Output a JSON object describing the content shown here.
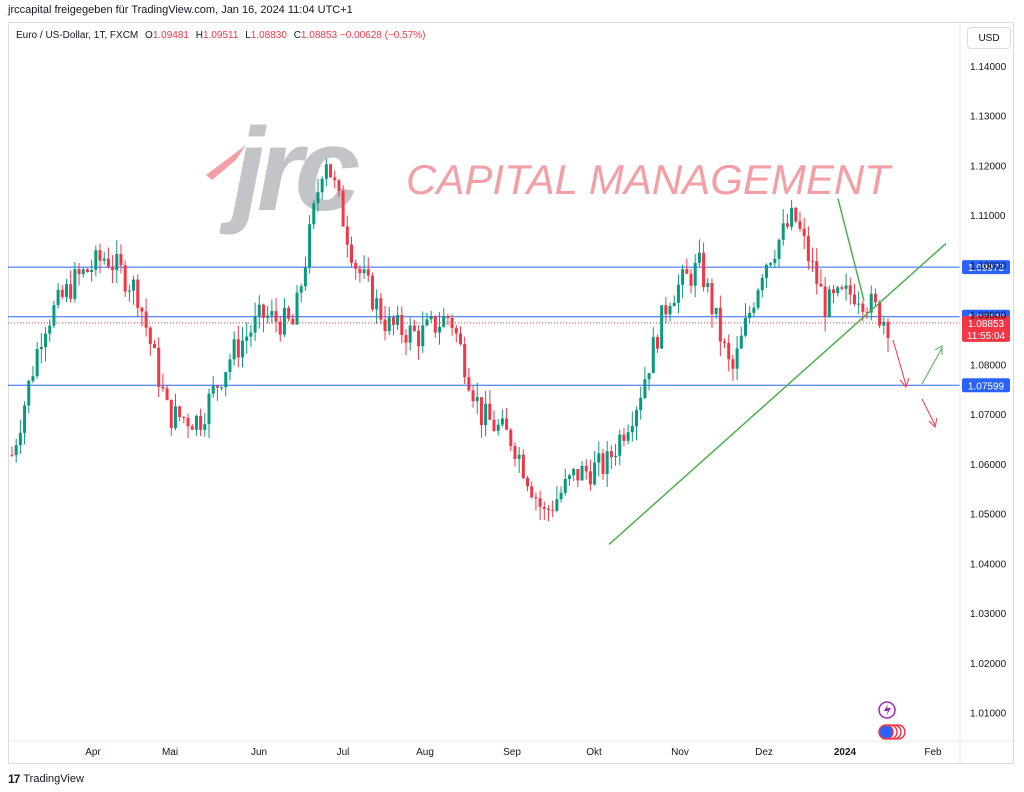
{
  "header": {
    "text": "jrccapital freigegeben für TradingView.com, Jan 16, 2024 11:04 UTC+1"
  },
  "legend": {
    "symbol": "Euro / US-Dollar, 1T, FXCM",
    "o_label": "O",
    "o": "1.09481",
    "h_label": "H",
    "h": "1.09511",
    "l_label": "L",
    "l": "1.08830",
    "c_label": "C",
    "c": "1.08853",
    "change": "−0.00628 (−0.57%)"
  },
  "currency": "USD",
  "watermark": {
    "logo": "jrc",
    "text": "CAPITAL MANAGEMENT"
  },
  "footer": {
    "brand": "TradingView"
  },
  "colors": {
    "up": "#089981",
    "down": "#f23645",
    "level": "#2962ff",
    "trend": "#4caf50",
    "watermark": "#f2a0a6"
  },
  "chart_data": {
    "type": "candlestick",
    "ylim": [
      1.0045,
      1.149
    ],
    "y_ticks": [
      "1.14000",
      "1.13000",
      "1.12000",
      "1.11000",
      "1.10000",
      "1.09000",
      "1.08000",
      "1.07000",
      "1.06000",
      "1.05000",
      "1.04000",
      "1.03000",
      "1.02000",
      "1.01000"
    ],
    "x_ticks": [
      "Apr",
      "Mai",
      "Jun",
      "Jul",
      "Aug",
      "Sep",
      "Okt",
      "Nov",
      "Dez",
      "2024",
      "Feb"
    ],
    "levels": [
      {
        "value": 1.09973,
        "label": "1.09973"
      },
      {
        "value": 1.08976,
        "label": "1.08976"
      },
      {
        "value": 1.07599,
        "label": "1.07599"
      }
    ],
    "last_price": {
      "value": 1.08853,
      "label": "1.08853",
      "countdown": "11:55:04"
    },
    "trendlines": [
      {
        "from": [
          "Okt",
          1.044
        ],
        "to": [
          "Feb",
          1.1045
        ]
      },
      {
        "from": [
          "2024",
          1.1135
        ],
        "to": [
          "2024",
          1.093
        ]
      }
    ],
    "close_path": [
      [
        "Mrz",
        1.062
      ],
      [
        "Apr",
        1.088
      ],
      [
        "Apr",
        1.097
      ],
      [
        "Mai",
        1.102
      ],
      [
        "Mai",
        1.095
      ],
      [
        "Jun",
        1.07
      ],
      [
        "Jun",
        1.069
      ],
      [
        "Jun",
        1.082
      ],
      [
        "Jul",
        1.09
      ],
      [
        "Jul",
        1.088
      ],
      [
        "Jul",
        1.123
      ],
      [
        "Aug",
        1.1
      ],
      [
        "Aug",
        1.088
      ],
      [
        "Aug",
        1.086
      ],
      [
        "Sep",
        1.09
      ],
      [
        "Sep",
        1.07
      ],
      [
        "Sep",
        1.065
      ],
      [
        "Okt",
        1.05
      ],
      [
        "Okt",
        1.058
      ],
      [
        "Nov",
        1.06
      ],
      [
        "Nov",
        1.073
      ],
      [
        "Nov",
        1.094
      ],
      [
        "Dez",
        1.1
      ],
      [
        "Dez",
        1.078
      ],
      [
        "Dez",
        1.1
      ],
      [
        "2024",
        1.11
      ],
      [
        "2024",
        1.092
      ],
      [
        "2024",
        1.095
      ],
      [
        "2024",
        1.0885
      ]
    ]
  }
}
